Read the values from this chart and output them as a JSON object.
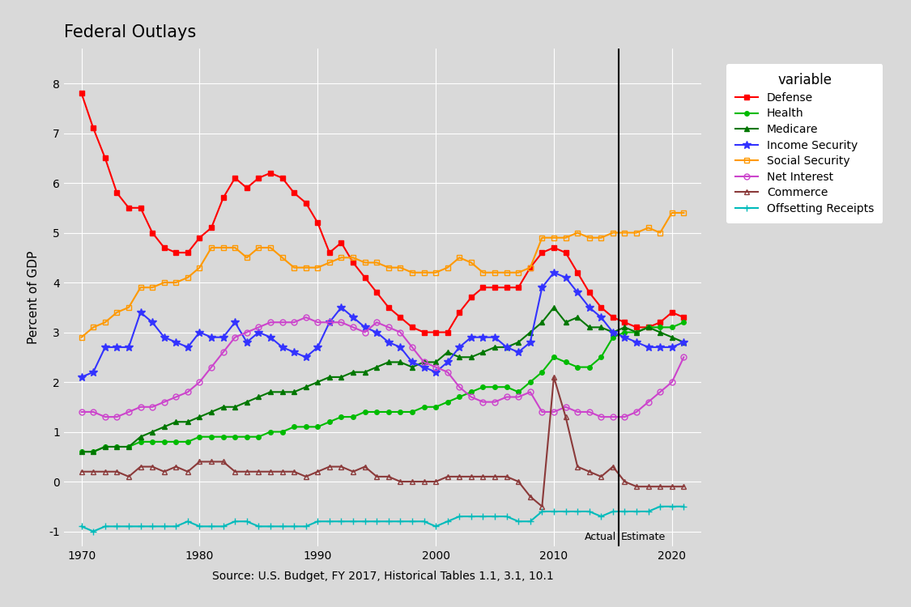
{
  "title": "Federal Outlays",
  "xlabel": "Source: U.S. Budget, FY 2017, Historical Tables 1.1, 3.1, 10.1",
  "ylabel": "Percent of GDP",
  "bg_color": "#d9d9d9",
  "panel_color": "#d9d9d9",
  "vline_year": 2015.5,
  "actual_label": "Actual",
  "estimate_label": "Estimate",
  "ylim": [
    -1.3,
    8.7
  ],
  "xlim": [
    1968.5,
    2022.5
  ],
  "yticks": [
    -1,
    0,
    1,
    2,
    3,
    4,
    5,
    6,
    7,
    8
  ],
  "years": [
    1970,
    1971,
    1972,
    1973,
    1974,
    1975,
    1976,
    1977,
    1978,
    1979,
    1980,
    1981,
    1982,
    1983,
    1984,
    1985,
    1986,
    1987,
    1988,
    1989,
    1990,
    1991,
    1992,
    1993,
    1994,
    1995,
    1996,
    1997,
    1998,
    1999,
    2000,
    2001,
    2002,
    2003,
    2004,
    2005,
    2006,
    2007,
    2008,
    2009,
    2010,
    2011,
    2012,
    2013,
    2014,
    2015,
    2016,
    2017,
    2018,
    2019,
    2020,
    2021
  ],
  "Defense": [
    7.8,
    7.1,
    6.5,
    5.8,
    5.5,
    5.5,
    5.0,
    4.7,
    4.6,
    4.6,
    4.9,
    5.1,
    5.7,
    6.1,
    5.9,
    6.1,
    6.2,
    6.1,
    5.8,
    5.6,
    5.2,
    4.6,
    4.8,
    4.4,
    4.1,
    3.8,
    3.5,
    3.3,
    3.1,
    3.0,
    3.0,
    3.0,
    3.4,
    3.7,
    3.9,
    3.9,
    3.9,
    3.9,
    4.3,
    4.6,
    4.7,
    4.6,
    4.2,
    3.8,
    3.5,
    3.3,
    3.2,
    3.1,
    3.1,
    3.2,
    3.4,
    3.3
  ],
  "Health": [
    0.6,
    0.6,
    0.7,
    0.7,
    0.7,
    0.8,
    0.8,
    0.8,
    0.8,
    0.8,
    0.9,
    0.9,
    0.9,
    0.9,
    0.9,
    0.9,
    1.0,
    1.0,
    1.1,
    1.1,
    1.1,
    1.2,
    1.3,
    1.3,
    1.4,
    1.4,
    1.4,
    1.4,
    1.4,
    1.5,
    1.5,
    1.6,
    1.7,
    1.8,
    1.9,
    1.9,
    1.9,
    1.8,
    2.0,
    2.2,
    2.5,
    2.4,
    2.3,
    2.3,
    2.5,
    2.9,
    3.0,
    3.0,
    3.1,
    3.1,
    3.1,
    3.2
  ],
  "Medicare": [
    0.6,
    0.6,
    0.7,
    0.7,
    0.7,
    0.9,
    1.0,
    1.1,
    1.2,
    1.2,
    1.3,
    1.4,
    1.5,
    1.5,
    1.6,
    1.7,
    1.8,
    1.8,
    1.8,
    1.9,
    2.0,
    2.1,
    2.1,
    2.2,
    2.2,
    2.3,
    2.4,
    2.4,
    2.3,
    2.4,
    2.4,
    2.6,
    2.5,
    2.5,
    2.6,
    2.7,
    2.7,
    2.8,
    3.0,
    3.2,
    3.5,
    3.2,
    3.3,
    3.1,
    3.1,
    3.0,
    3.1,
    3.0,
    3.1,
    3.0,
    2.9,
    2.8
  ],
  "Income_Security": [
    2.1,
    2.2,
    2.7,
    2.7,
    2.7,
    3.4,
    3.2,
    2.9,
    2.8,
    2.7,
    3.0,
    2.9,
    2.9,
    3.2,
    2.8,
    3.0,
    2.9,
    2.7,
    2.6,
    2.5,
    2.7,
    3.2,
    3.5,
    3.3,
    3.1,
    3.0,
    2.8,
    2.7,
    2.4,
    2.3,
    2.2,
    2.4,
    2.7,
    2.9,
    2.9,
    2.9,
    2.7,
    2.6,
    2.8,
    3.9,
    4.2,
    4.1,
    3.8,
    3.5,
    3.3,
    3.0,
    2.9,
    2.8,
    2.7,
    2.7,
    2.7,
    2.8
  ],
  "Social_Security": [
    2.9,
    3.1,
    3.2,
    3.4,
    3.5,
    3.9,
    3.9,
    4.0,
    4.0,
    4.1,
    4.3,
    4.7,
    4.7,
    4.7,
    4.5,
    4.7,
    4.7,
    4.5,
    4.3,
    4.3,
    4.3,
    4.4,
    4.5,
    4.5,
    4.4,
    4.4,
    4.3,
    4.3,
    4.2,
    4.2,
    4.2,
    4.3,
    4.5,
    4.4,
    4.2,
    4.2,
    4.2,
    4.2,
    4.3,
    4.9,
    4.9,
    4.9,
    5.0,
    4.9,
    4.9,
    5.0,
    5.0,
    5.0,
    5.1,
    5.0,
    5.4,
    5.4
  ],
  "Net_Interest": [
    1.4,
    1.4,
    1.3,
    1.3,
    1.4,
    1.5,
    1.5,
    1.6,
    1.7,
    1.8,
    2.0,
    2.3,
    2.6,
    2.9,
    3.0,
    3.1,
    3.2,
    3.2,
    3.2,
    3.3,
    3.2,
    3.2,
    3.2,
    3.1,
    3.0,
    3.2,
    3.1,
    3.0,
    2.7,
    2.4,
    2.3,
    2.2,
    1.9,
    1.7,
    1.6,
    1.6,
    1.7,
    1.7,
    1.8,
    1.4,
    1.4,
    1.5,
    1.4,
    1.4,
    1.3,
    1.3,
    1.3,
    1.4,
    1.6,
    1.8,
    2.0,
    2.5
  ],
  "Commerce": [
    0.2,
    0.2,
    0.2,
    0.2,
    0.1,
    0.3,
    0.3,
    0.2,
    0.3,
    0.2,
    0.4,
    0.4,
    0.4,
    0.2,
    0.2,
    0.2,
    0.2,
    0.2,
    0.2,
    0.1,
    0.2,
    0.3,
    0.3,
    0.2,
    0.3,
    0.1,
    0.1,
    0.0,
    0.0,
    0.0,
    0.0,
    0.1,
    0.1,
    0.1,
    0.1,
    0.1,
    0.1,
    0.0,
    -0.3,
    -0.5,
    2.1,
    1.3,
    0.3,
    0.2,
    0.1,
    0.3,
    0.0,
    -0.1,
    -0.1,
    -0.1,
    -0.1,
    -0.1
  ],
  "Offsetting_Receipts": [
    -0.9,
    -1.0,
    -0.9,
    -0.9,
    -0.9,
    -0.9,
    -0.9,
    -0.9,
    -0.9,
    -0.8,
    -0.9,
    -0.9,
    -0.9,
    -0.8,
    -0.8,
    -0.9,
    -0.9,
    -0.9,
    -0.9,
    -0.9,
    -0.8,
    -0.8,
    -0.8,
    -0.8,
    -0.8,
    -0.8,
    -0.8,
    -0.8,
    -0.8,
    -0.8,
    -0.9,
    -0.8,
    -0.7,
    -0.7,
    -0.7,
    -0.7,
    -0.7,
    -0.8,
    -0.8,
    -0.6,
    -0.6,
    -0.6,
    -0.6,
    -0.6,
    -0.7,
    -0.6,
    -0.6,
    -0.6,
    -0.6,
    -0.5,
    -0.5,
    -0.5
  ],
  "series_styles": {
    "Defense": {
      "color": "#FF0000",
      "marker": "s",
      "markersize": 4,
      "lw": 1.5,
      "mfc": "#FF0000"
    },
    "Health": {
      "color": "#00BB00",
      "marker": "o",
      "markersize": 4,
      "lw": 1.5,
      "mfc": "#00BB00"
    },
    "Medicare": {
      "color": "#007700",
      "marker": "^",
      "markersize": 5,
      "lw": 1.5,
      "mfc": "#007700"
    },
    "Income Security": {
      "color": "#3333FF",
      "marker": "*",
      "markersize": 7,
      "lw": 1.5,
      "mfc": "#3333FF"
    },
    "Social Security": {
      "color": "#FF9900",
      "marker": "s",
      "markersize": 5,
      "lw": 1.5,
      "mfc": "none"
    },
    "Net Interest": {
      "color": "#CC44CC",
      "marker": "o",
      "markersize": 5,
      "lw": 1.5,
      "mfc": "none"
    },
    "Commerce": {
      "color": "#8B3A3A",
      "marker": "^",
      "markersize": 5,
      "lw": 1.5,
      "mfc": "none"
    },
    "Offsetting Receipts": {
      "color": "#00BBBB",
      "marker": "+",
      "markersize": 6,
      "lw": 1.5,
      "mfc": "#00BBBB"
    }
  }
}
